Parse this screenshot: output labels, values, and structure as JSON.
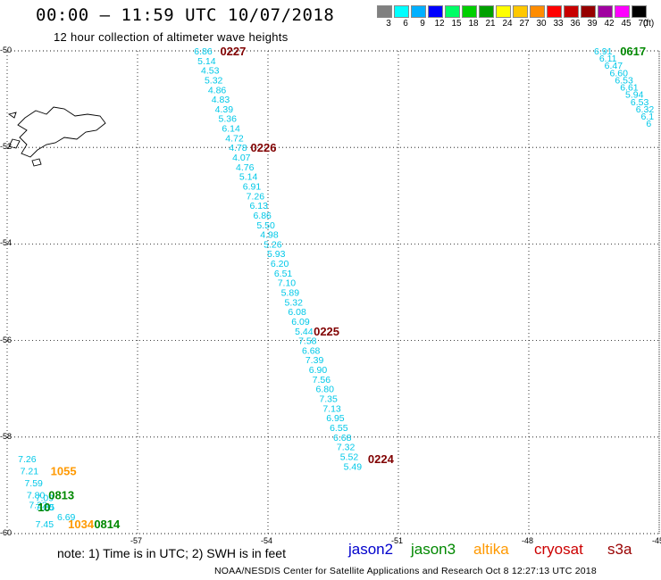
{
  "header": {
    "title": "00:00 – 11:59 UTC 10/07/2018",
    "subtitle": "12 hour collection of altimeter wave heights"
  },
  "color_scale": {
    "unit": "(ft)",
    "bins": [
      {
        "label": "3",
        "color": "#808080"
      },
      {
        "label": "6",
        "color": "#00ffff"
      },
      {
        "label": "9",
        "color": "#00b0ff"
      },
      {
        "label": "12",
        "color": "#0000ff"
      },
      {
        "label": "15",
        "color": "#00ff66"
      },
      {
        "label": "18",
        "color": "#00d000"
      },
      {
        "label": "21",
        "color": "#00a000"
      },
      {
        "label": "24",
        "color": "#ffff00"
      },
      {
        "label": "27",
        "color": "#ffc800"
      },
      {
        "label": "30",
        "color": "#ff8c00"
      },
      {
        "label": "33",
        "color": "#ff0000"
      },
      {
        "label": "36",
        "color": "#c80000"
      },
      {
        "label": "39",
        "color": "#960000"
      },
      {
        "label": "42",
        "color": "#a000a0"
      },
      {
        "label": "45",
        "color": "#ff00ff"
      },
      {
        "label": "70",
        "color": "#000000"
      }
    ]
  },
  "axes": {
    "lat_labels": [
      "-50",
      "-52",
      "-54",
      "-56",
      "-58",
      "-60"
    ],
    "lon_labels": [
      "-57",
      "-54",
      "-51",
      "-48",
      "-45"
    ],
    "lat_range": [
      -60,
      -50
    ],
    "lon_range": [
      -60,
      -45
    ],
    "grid": "dotted"
  },
  "colors": {
    "wave_text": "#00c8e8",
    "time_label": "#800000",
    "jason3_time": "#008800",
    "altika_time": "#ff9900"
  },
  "tracks": [
    {
      "points": [
        {
          "lat": -50.0,
          "lon": -55.7,
          "value": "6.86"
        },
        {
          "lat": -50.2,
          "lon": -55.62,
          "value": "5.14"
        },
        {
          "lat": -50.4,
          "lon": -55.54,
          "value": "4.53"
        },
        {
          "lat": -50.6,
          "lon": -55.46,
          "value": "5.32"
        },
        {
          "lat": -50.8,
          "lon": -55.38,
          "value": "4.86"
        },
        {
          "lat": -51.0,
          "lon": -55.3,
          "value": "4.83"
        },
        {
          "lat": -51.2,
          "lon": -55.22,
          "value": "4.39"
        },
        {
          "lat": -51.4,
          "lon": -55.14,
          "value": "5.36"
        },
        {
          "lat": -51.6,
          "lon": -55.06,
          "value": "6.14"
        },
        {
          "lat": -51.8,
          "lon": -54.98,
          "value": "4.72"
        },
        {
          "lat": -52.0,
          "lon": -54.9,
          "value": "4.78"
        },
        {
          "lat": -52.2,
          "lon": -54.82,
          "value": "4.07"
        },
        {
          "lat": -52.4,
          "lon": -54.74,
          "value": "4.76"
        },
        {
          "lat": -52.6,
          "lon": -54.66,
          "value": "5.14"
        },
        {
          "lat": -52.8,
          "lon": -54.58,
          "value": "6.91"
        },
        {
          "lat": -53.0,
          "lon": -54.5,
          "value": "7.26"
        },
        {
          "lat": -53.2,
          "lon": -54.42,
          "value": "6.13"
        },
        {
          "lat": -53.4,
          "lon": -54.34,
          "value": "6.86"
        },
        {
          "lat": -53.6,
          "lon": -54.26,
          "value": "5.50"
        },
        {
          "lat": -53.8,
          "lon": -54.18,
          "value": "4.98"
        },
        {
          "lat": -54.0,
          "lon": -54.1,
          "value": "5.26"
        },
        {
          "lat": -54.2,
          "lon": -54.02,
          "value": "5.93"
        },
        {
          "lat": -54.4,
          "lon": -53.94,
          "value": "6.20"
        },
        {
          "lat": -54.6,
          "lon": -53.86,
          "value": "6.51"
        },
        {
          "lat": -54.8,
          "lon": -53.78,
          "value": "7.10"
        },
        {
          "lat": -55.0,
          "lon": -53.7,
          "value": "5.89"
        },
        {
          "lat": -55.2,
          "lon": -53.62,
          "value": "5.32"
        },
        {
          "lat": -55.4,
          "lon": -53.54,
          "value": "6.08"
        },
        {
          "lat": -55.6,
          "lon": -53.46,
          "value": "6.09"
        },
        {
          "lat": -55.8,
          "lon": -53.38,
          "value": "5.44"
        },
        {
          "lat": -56.0,
          "lon": -53.3,
          "value": "7.58"
        },
        {
          "lat": -56.2,
          "lon": -53.22,
          "value": "6.68"
        },
        {
          "lat": -56.4,
          "lon": -53.14,
          "value": "7.39"
        },
        {
          "lat": -56.6,
          "lon": -53.06,
          "value": "6.90"
        },
        {
          "lat": -56.8,
          "lon": -52.98,
          "value": "7.56"
        },
        {
          "lat": -57.0,
          "lon": -52.9,
          "value": "6.80"
        },
        {
          "lat": -57.2,
          "lon": -52.82,
          "value": "7.35"
        },
        {
          "lat": -57.4,
          "lon": -52.74,
          "value": "7.13"
        },
        {
          "lat": -57.6,
          "lon": -52.66,
          "value": "6.95"
        },
        {
          "lat": -57.8,
          "lon": -52.58,
          "value": "6.55"
        },
        {
          "lat": -58.0,
          "lon": -52.5,
          "value": "6.68"
        },
        {
          "lat": -58.2,
          "lon": -52.42,
          "value": "7.32"
        },
        {
          "lat": -58.4,
          "lon": -52.34,
          "value": "5.52"
        },
        {
          "lat": -58.6,
          "lon": -52.26,
          "value": "5.49"
        }
      ],
      "time_labels": [
        {
          "text": "0227",
          "lat": -50.0,
          "lon": -55.1,
          "color": "#800000"
        },
        {
          "text": "0226",
          "lat": -52.0,
          "lon": -54.4,
          "color": "#800000"
        },
        {
          "text": "0225",
          "lat": -55.8,
          "lon": -52.95,
          "color": "#800000"
        },
        {
          "text": "0224",
          "lat": -58.45,
          "lon": -51.7,
          "color": "#800000"
        }
      ]
    },
    {
      "points": [
        {
          "lat": -50.0,
          "lon": -46.5,
          "value": "6.91"
        },
        {
          "lat": -50.15,
          "lon": -46.38,
          "value": "6.11"
        },
        {
          "lat": -50.3,
          "lon": -46.26,
          "value": "6.47"
        },
        {
          "lat": -50.45,
          "lon": -46.14,
          "value": "6.60"
        },
        {
          "lat": -50.6,
          "lon": -46.02,
          "value": "6.53"
        },
        {
          "lat": -50.75,
          "lon": -45.9,
          "value": "6.61"
        },
        {
          "lat": -50.9,
          "lon": -45.78,
          "value": "5.94"
        },
        {
          "lat": -51.05,
          "lon": -45.66,
          "value": "6.53"
        },
        {
          "lat": -51.2,
          "lon": -45.54,
          "value": "6.32"
        },
        {
          "lat": -51.35,
          "lon": -45.42,
          "value": "6.1"
        },
        {
          "lat": -51.5,
          "lon": -45.3,
          "value": "6"
        }
      ],
      "time_labels": [
        {
          "text": "0617",
          "lat": -50.0,
          "lon": -45.9,
          "color": "#008800"
        }
      ]
    },
    {
      "points": [
        {
          "lat": -58.45,
          "lon": -59.75,
          "value": "7.26"
        },
        {
          "lat": -58.7,
          "lon": -59.7,
          "value": "7.21"
        },
        {
          "lat": -58.95,
          "lon": -59.6,
          "value": "7.59"
        },
        {
          "lat": -59.2,
          "lon": -59.55,
          "value": "7.80"
        },
        {
          "lat": -59.25,
          "lon": -59.35,
          "value": "7.09"
        },
        {
          "lat": -59.4,
          "lon": -59.5,
          "value": "7.32"
        },
        {
          "lat": -59.45,
          "lon": -59.35,
          "value": "7.20"
        },
        {
          "lat": -59.45,
          "lon": -59.15,
          "value": "55"
        },
        {
          "lat": -59.65,
          "lon": -58.85,
          "value": "6.69"
        },
        {
          "lat": -59.8,
          "lon": -59.35,
          "value": "7.45"
        }
      ],
      "time_labels": [
        {
          "text": "1055",
          "lat": -58.7,
          "lon": -59.0,
          "color": "#ff9900"
        },
        {
          "text": "0813",
          "lat": -59.2,
          "lon": -59.05,
          "color": "#008800"
        },
        {
          "text": "10",
          "lat": -59.45,
          "lon": -59.3,
          "color": "#008800"
        },
        {
          "text": "1034",
          "lat": -59.8,
          "lon": -58.6,
          "color": "#ff9900"
        },
        {
          "text": "0814",
          "lat": -59.8,
          "lon": -58.0,
          "color": "#008800"
        }
      ]
    }
  ],
  "footer": {
    "note": "note: 1) Time is in UTC; 2) SWH is in feet",
    "legend": [
      {
        "name": "jason2",
        "color": "#0000cc"
      },
      {
        "name": "jason3",
        "color": "#008800"
      },
      {
        "name": "altika",
        "color": "#ff9900"
      },
      {
        "name": "cryosat",
        "color": "#cc0000"
      },
      {
        "name": "s3a",
        "color": "#990000"
      }
    ],
    "credit": "NOAA/NESDIS Center for Satellite Applications and Research    Oct  8 12:27:13 UTC 2018"
  }
}
